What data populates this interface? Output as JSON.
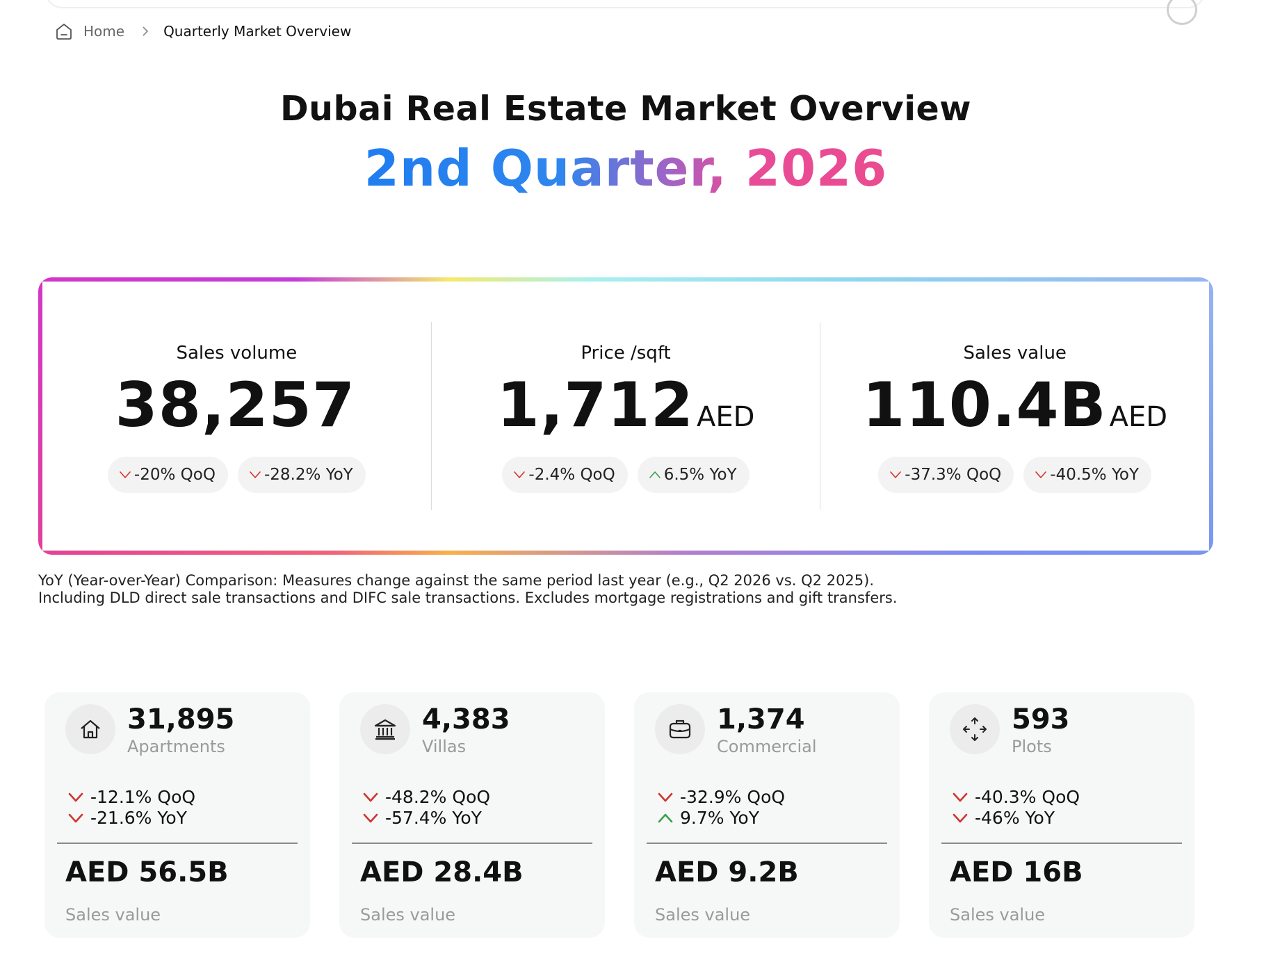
{
  "breadcrumb": {
    "home": "Home",
    "current": "Quarterly Market Overview"
  },
  "hero": {
    "title": "Dubai Real Estate Market Overview",
    "subtitle": "2nd Quarter, 2026"
  },
  "colors": {
    "down": "#d0352e",
    "up": "#3aa04a",
    "subtitle_gradient_start": "#1f7df0",
    "subtitle_gradient_end": "#ea4c8f"
  },
  "kpis": [
    {
      "label": "Sales volume",
      "value": "38,257",
      "unit": "",
      "qoq": {
        "text": "-20% QoQ",
        "direction": "down"
      },
      "yoy": {
        "text": "-28.2% YoY",
        "direction": "down"
      }
    },
    {
      "label": "Price /sqft",
      "value": "1,712",
      "unit": "AED",
      "qoq": {
        "text": "-2.4% QoQ",
        "direction": "down"
      },
      "yoy": {
        "text": "6.5% YoY",
        "direction": "up"
      }
    },
    {
      "label": "Sales value",
      "value": "110.4B",
      "unit": "AED",
      "qoq": {
        "text": "-37.3% QoQ",
        "direction": "down"
      },
      "yoy": {
        "text": "-40.5% YoY",
        "direction": "down"
      }
    }
  ],
  "footnote": {
    "line1": "YoY (Year-over-Year) Comparison: Measures change against the same period last year (e.g., Q2 2026 vs. Q2 2025).",
    "line2": "Including DLD direct sale transactions and DIFC sale transactions. Excludes mortgage registrations and gift transfers."
  },
  "segments": [
    {
      "icon": "house-icon",
      "count": "31,895",
      "type": "Apartments",
      "qoq": {
        "text": "-12.1% QoQ",
        "direction": "down"
      },
      "yoy": {
        "text": "-21.6% YoY",
        "direction": "down"
      },
      "amount": "AED 56.5B",
      "amount_label": "Sales value"
    },
    {
      "icon": "villa-icon",
      "count": "4,383",
      "type": "Villas",
      "qoq": {
        "text": "-48.2% QoQ",
        "direction": "down"
      },
      "yoy": {
        "text": "-57.4% YoY",
        "direction": "down"
      },
      "amount": "AED 28.4B",
      "amount_label": "Sales value"
    },
    {
      "icon": "briefcase-icon",
      "count": "1,374",
      "type": "Commercial",
      "qoq": {
        "text": "-32.9% QoQ",
        "direction": "down"
      },
      "yoy": {
        "text": "9.7% YoY",
        "direction": "up"
      },
      "amount": "AED 9.2B",
      "amount_label": "Sales value"
    },
    {
      "icon": "expand-arrows-icon",
      "count": "593",
      "type": "Plots",
      "qoq": {
        "text": "-40.3% QoQ",
        "direction": "down"
      },
      "yoy": {
        "text": "-46% YoY",
        "direction": "down"
      },
      "amount": "AED 16B",
      "amount_label": "Sales value"
    }
  ]
}
